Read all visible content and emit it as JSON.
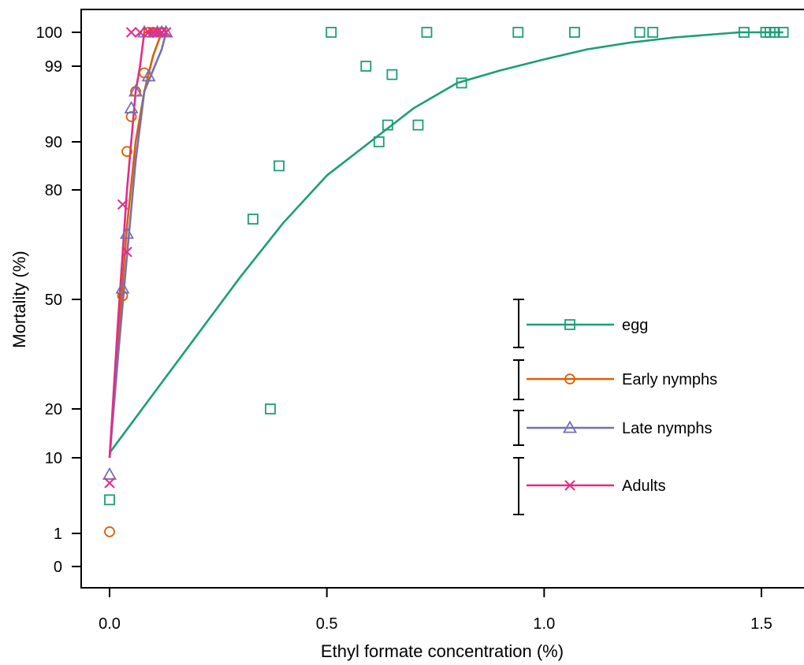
{
  "chart_data": {
    "type": "scatter",
    "title": "",
    "xlabel": "Ethyl formate concentration (%)",
    "ylabel": "Mortality (%)",
    "xlim": [
      -0.06,
      1.6
    ],
    "x_ticks": [
      0.0,
      0.5,
      1.0,
      1.5
    ],
    "x_tick_labels": [
      "0.0",
      "0.5",
      "1.0",
      "1.5"
    ],
    "y_ticks": [
      0,
      1,
      10,
      20,
      50,
      80,
      90,
      99,
      100
    ],
    "y_tick_labels": [
      "0",
      "1",
      "10",
      "20",
      "50",
      "80",
      "90",
      "99",
      "100"
    ],
    "y_scale": "probit-like (0 and 100 plotted as boundary values)",
    "legend_position": "right",
    "series": [
      {
        "name": "egg",
        "color": "#1b9e77",
        "marker": "square",
        "points": [
          {
            "x": 0.0,
            "y": 5
          },
          {
            "x": 0.33,
            "y": 72
          },
          {
            "x": 0.37,
            "y": 20
          },
          {
            "x": 0.39,
            "y": 85
          },
          {
            "x": 0.51,
            "y": 100
          },
          {
            "x": 0.59,
            "y": 99
          },
          {
            "x": 0.62,
            "y": 90
          },
          {
            "x": 0.64,
            "y": 92
          },
          {
            "x": 0.65,
            "y": 98
          },
          {
            "x": 0.71,
            "y": 92
          },
          {
            "x": 0.73,
            "y": 100
          },
          {
            "x": 0.81,
            "y": 97
          },
          {
            "x": 0.94,
            "y": 100
          },
          {
            "x": 1.07,
            "y": 100
          },
          {
            "x": 1.22,
            "y": 100
          },
          {
            "x": 1.25,
            "y": 100
          },
          {
            "x": 1.46,
            "y": 100
          },
          {
            "x": 1.51,
            "y": 100
          },
          {
            "x": 1.52,
            "y": 100
          },
          {
            "x": 1.53,
            "y": 100
          },
          {
            "x": 1.55,
            "y": 100
          }
        ],
        "curve": [
          {
            "x": 0.0,
            "y": 11
          },
          {
            "x": 0.1,
            "y": 24
          },
          {
            "x": 0.2,
            "y": 40
          },
          {
            "x": 0.3,
            "y": 56
          },
          {
            "x": 0.4,
            "y": 71
          },
          {
            "x": 0.5,
            "y": 83
          },
          {
            "x": 0.6,
            "y": 90
          },
          {
            "x": 0.7,
            "y": 94
          },
          {
            "x": 0.8,
            "y": 97
          },
          {
            "x": 0.9,
            "y": 98.5
          },
          {
            "x": 1.0,
            "y": 99.2
          },
          {
            "x": 1.1,
            "y": 99.5
          },
          {
            "x": 1.2,
            "y": 99.7
          },
          {
            "x": 1.3,
            "y": 99.85
          },
          {
            "x": 1.45,
            "y": 100
          },
          {
            "x": 1.55,
            "y": 100
          }
        ]
      },
      {
        "name": "Early nymphs",
        "color": "#d95f02",
        "marker": "circle",
        "points": [
          {
            "x": 0.0,
            "y": 1.2
          },
          {
            "x": 0.03,
            "y": 51
          },
          {
            "x": 0.04,
            "y": 88
          },
          {
            "x": 0.05,
            "y": 93
          },
          {
            "x": 0.06,
            "y": 96
          },
          {
            "x": 0.08,
            "y": 98.2
          },
          {
            "x": 0.09,
            "y": 100
          },
          {
            "x": 0.1,
            "y": 100
          },
          {
            "x": 0.12,
            "y": 100
          }
        ],
        "curve": [
          {
            "x": 0.0,
            "y": 10
          },
          {
            "x": 0.02,
            "y": 40
          },
          {
            "x": 0.04,
            "y": 70
          },
          {
            "x": 0.06,
            "y": 90
          },
          {
            "x": 0.08,
            "y": 96
          },
          {
            "x": 0.1,
            "y": 99.3
          },
          {
            "x": 0.12,
            "y": 100
          }
        ]
      },
      {
        "name": "Late nymphs",
        "color": "#7570b3",
        "marker": "triangle",
        "points": [
          {
            "x": 0.0,
            "y": 8
          },
          {
            "x": 0.03,
            "y": 53
          },
          {
            "x": 0.04,
            "y": 68
          },
          {
            "x": 0.05,
            "y": 94
          },
          {
            "x": 0.06,
            "y": 96
          },
          {
            "x": 0.08,
            "y": 100
          },
          {
            "x": 0.09,
            "y": 97.8
          },
          {
            "x": 0.11,
            "y": 100
          },
          {
            "x": 0.12,
            "y": 100
          },
          {
            "x": 0.13,
            "y": 100
          }
        ],
        "curve": [
          {
            "x": 0.0,
            "y": 10
          },
          {
            "x": 0.02,
            "y": 35
          },
          {
            "x": 0.04,
            "y": 62
          },
          {
            "x": 0.06,
            "y": 86
          },
          {
            "x": 0.08,
            "y": 96
          },
          {
            "x": 0.1,
            "y": 98.5
          },
          {
            "x": 0.12,
            "y": 99.5
          },
          {
            "x": 0.13,
            "y": 100
          }
        ]
      },
      {
        "name": "Adults",
        "color": "#e7298a",
        "marker": "x",
        "points": [
          {
            "x": 0.0,
            "y": 7
          },
          {
            "x": 0.03,
            "y": 76
          },
          {
            "x": 0.04,
            "y": 63
          },
          {
            "x": 0.05,
            "y": 100
          },
          {
            "x": 0.07,
            "y": 100
          },
          {
            "x": 0.09,
            "y": 100
          },
          {
            "x": 0.1,
            "y": 100
          },
          {
            "x": 0.11,
            "y": 100
          },
          {
            "x": 0.12,
            "y": 100
          },
          {
            "x": 0.13,
            "y": 100
          }
        ],
        "curve": [
          {
            "x": 0.0,
            "y": 10
          },
          {
            "x": 0.02,
            "y": 45
          },
          {
            "x": 0.04,
            "y": 80
          },
          {
            "x": 0.06,
            "y": 96
          },
          {
            "x": 0.07,
            "y": 99
          },
          {
            "x": 0.08,
            "y": 100
          },
          {
            "x": 0.12,
            "y": 100
          }
        ]
      }
    ]
  }
}
